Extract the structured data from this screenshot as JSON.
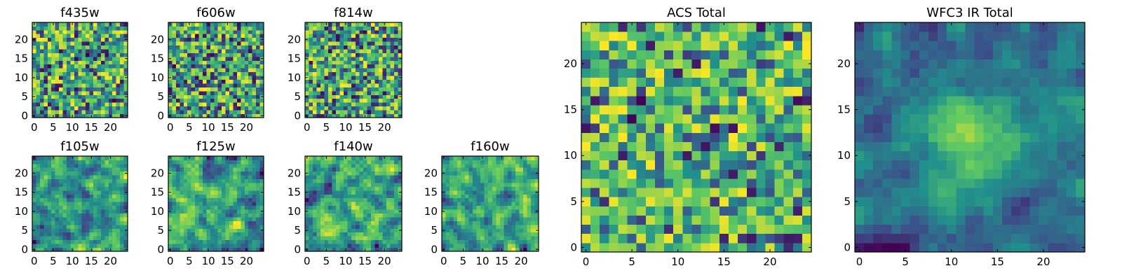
{
  "chart_data": [
    {
      "type": "heatmap",
      "title": "f435w",
      "grid_size": 25,
      "xlim": [
        -0.5,
        24.5
      ],
      "ylim": [
        -0.5,
        24.5
      ],
      "xticks": [
        0,
        5,
        10,
        15,
        20
      ],
      "yticks": [
        0,
        5,
        10,
        15,
        20
      ],
      "texture": "noise",
      "seed": 11,
      "smooth": 0
    },
    {
      "type": "heatmap",
      "title": "f606w",
      "grid_size": 25,
      "xlim": [
        -0.5,
        24.5
      ],
      "ylim": [
        -0.5,
        24.5
      ],
      "xticks": [
        0,
        5,
        10,
        15,
        20
      ],
      "yticks": [
        0,
        5,
        10,
        15,
        20
      ],
      "texture": "noise",
      "seed": 23,
      "smooth": 0
    },
    {
      "type": "heatmap",
      "title": "f814w",
      "grid_size": 25,
      "xlim": [
        -0.5,
        24.5
      ],
      "ylim": [
        -0.5,
        24.5
      ],
      "xticks": [
        0,
        5,
        10,
        15,
        20
      ],
      "yticks": [
        0,
        5,
        10,
        15,
        20
      ],
      "texture": "noise",
      "seed": 37,
      "smooth": 0
    },
    {
      "type": "heatmap",
      "title": "f105w",
      "grid_size": 25,
      "xlim": [
        -0.5,
        24.5
      ],
      "ylim": [
        -0.5,
        24.5
      ],
      "xticks": [
        0,
        5,
        10,
        15,
        20
      ],
      "yticks": [
        0,
        5,
        10,
        15,
        20
      ],
      "texture": "smooth",
      "seed": 41,
      "smooth": 1
    },
    {
      "type": "heatmap",
      "title": "f125w",
      "grid_size": 25,
      "xlim": [
        -0.5,
        24.5
      ],
      "ylim": [
        -0.5,
        24.5
      ],
      "xticks": [
        0,
        5,
        10,
        15,
        20
      ],
      "yticks": [
        0,
        5,
        10,
        15,
        20
      ],
      "texture": "smooth",
      "seed": 53,
      "smooth": 1
    },
    {
      "type": "heatmap",
      "title": "f140w",
      "grid_size": 25,
      "xlim": [
        -0.5,
        24.5
      ],
      "ylim": [
        -0.5,
        24.5
      ],
      "xticks": [
        0,
        5,
        10,
        15,
        20
      ],
      "yticks": [
        0,
        5,
        10,
        15,
        20
      ],
      "texture": "smooth",
      "seed": 67,
      "smooth": 1
    },
    {
      "type": "heatmap",
      "title": "f160w",
      "grid_size": 25,
      "xlim": [
        -0.5,
        24.5
      ],
      "ylim": [
        -0.5,
        24.5
      ],
      "xticks": [
        0,
        5,
        10,
        15,
        20
      ],
      "yticks": [
        0,
        5,
        10,
        15,
        20
      ],
      "texture": "smooth",
      "seed": 79,
      "smooth": 1
    },
    {
      "type": "heatmap",
      "title": "ACS Total",
      "grid_size": 25,
      "xlim": [
        -0.5,
        24.5
      ],
      "ylim": [
        -0.5,
        24.5
      ],
      "xticks": [
        0,
        5,
        10,
        15,
        20
      ],
      "yticks": [
        0,
        5,
        10,
        15,
        20
      ],
      "texture": "bright-noise",
      "seed": 83,
      "smooth": 0
    },
    {
      "type": "heatmap",
      "title": "WFC3 IR Total",
      "grid_size": 25,
      "xlim": [
        -0.5,
        24.5
      ],
      "ylim": [
        -0.5,
        24.5
      ],
      "xticks": [
        0,
        5,
        10,
        15,
        20
      ],
      "yticks": [
        0,
        5,
        10,
        15,
        20
      ],
      "texture": "smooth-central-peak",
      "seed": 97,
      "smooth": 1,
      "peak_center": [
        12,
        12
      ]
    }
  ],
  "colormap": [
    "#440154",
    "#3b528b",
    "#21918c",
    "#5ec962",
    "#fde725"
  ]
}
